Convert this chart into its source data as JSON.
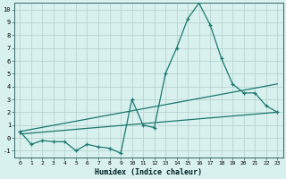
{
  "title": "",
  "xlabel": "Humidex (Indice chaleur)",
  "ylabel": "",
  "background_color": "#d8f0ee",
  "grid_color": "#b8d4d0",
  "line_color": "#1a7870",
  "xlim": [
    -0.5,
    23.5
  ],
  "ylim": [
    -1.5,
    10.5
  ],
  "xticks": [
    0,
    1,
    2,
    3,
    4,
    5,
    6,
    7,
    8,
    9,
    10,
    11,
    12,
    13,
    14,
    15,
    16,
    17,
    18,
    19,
    20,
    21,
    22,
    23
  ],
  "yticks": [
    -1,
    0,
    1,
    2,
    3,
    4,
    5,
    6,
    7,
    8,
    9,
    10
  ],
  "series1_x": [
    0,
    1,
    2,
    3,
    4,
    5,
    6,
    7,
    8,
    9,
    10,
    11,
    12,
    13,
    14,
    15,
    16,
    17,
    18,
    19,
    20,
    21,
    22,
    23
  ],
  "series1_y": [
    0.5,
    -0.5,
    -0.2,
    -0.3,
    -0.3,
    -1.0,
    -0.5,
    -0.7,
    -0.8,
    -1.2,
    3.0,
    1.0,
    0.8,
    5.0,
    7.0,
    9.3,
    10.5,
    8.8,
    6.2,
    4.2,
    3.5,
    3.5,
    2.5,
    2.0
  ],
  "series2_x": [
    0,
    23
  ],
  "series2_y": [
    0.5,
    4.2
  ],
  "series3_x": [
    0,
    23
  ],
  "series3_y": [
    0.3,
    2.0
  ]
}
